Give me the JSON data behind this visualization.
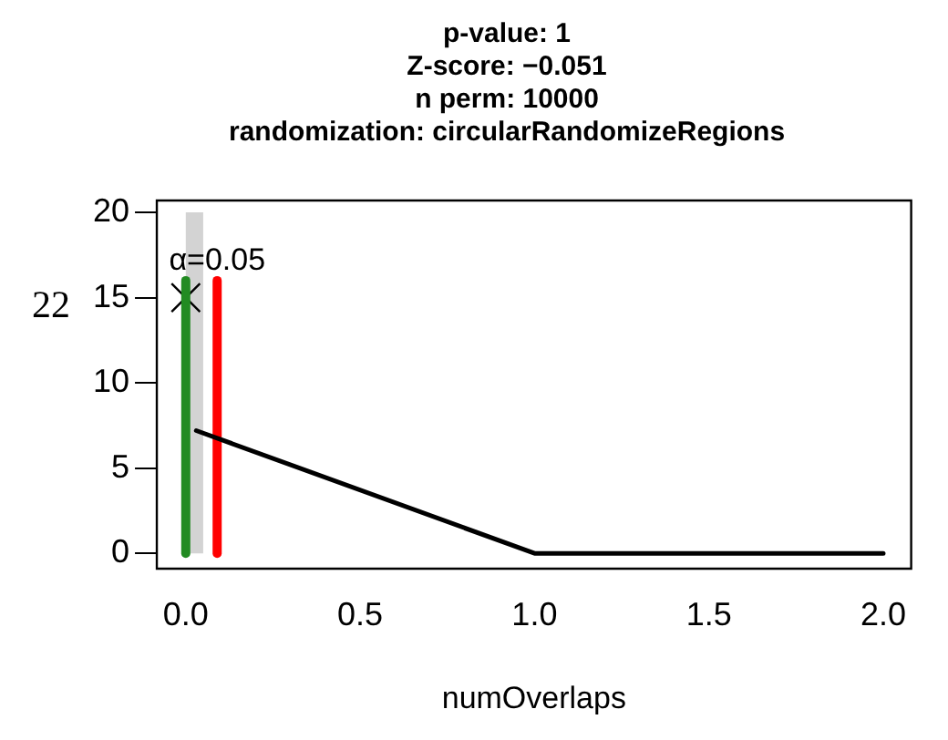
{
  "chart_data": {
    "type": "line",
    "title": "p-value: 1\nZ-score: −0.051\nn perm: 10000\nrandomization: circularRandomizeRegions",
    "xlabel": "numOverlaps",
    "ylabel": "22",
    "series": [
      {
        "type": "histogram",
        "bins": [
          0,
          0.05
        ],
        "values": [
          20
        ],
        "color": "#d3d3d3"
      },
      {
        "x": [
          0.03,
          1,
          2
        ],
        "values": [
          7.2,
          0,
          0
        ],
        "color": "#000000"
      },
      {
        "x": [
          0,
          0
        ],
        "values": [
          0,
          16
        ],
        "color": "#228b22"
      },
      {
        "x": [
          0.09,
          0.09
        ],
        "values": [
          0,
          16
        ],
        "color": "#ff0000"
      },
      {
        "type": "scatter",
        "x": [
          0
        ],
        "values": [
          15
        ],
        "color": "#000000",
        "marker": "cross"
      }
    ],
    "annotations": [
      {
        "text": "α=0.05",
        "x": 0.09,
        "y": 16
      }
    ],
    "xlim": [
      -0.083,
      2.08
    ],
    "xticks": [
      {
        "value": 0,
        "label": "0.0"
      },
      {
        "value": 0.5,
        "label": "0.5"
      },
      {
        "value": 1,
        "label": "1.0"
      },
      {
        "value": 1.5,
        "label": "1.5"
      },
      {
        "value": 2,
        "label": "2.0"
      }
    ],
    "ylim": [
      -0.9,
      20.7
    ],
    "yticks": [
      0,
      5,
      10,
      15,
      20
    ],
    "grid": false,
    "legend": false
  }
}
